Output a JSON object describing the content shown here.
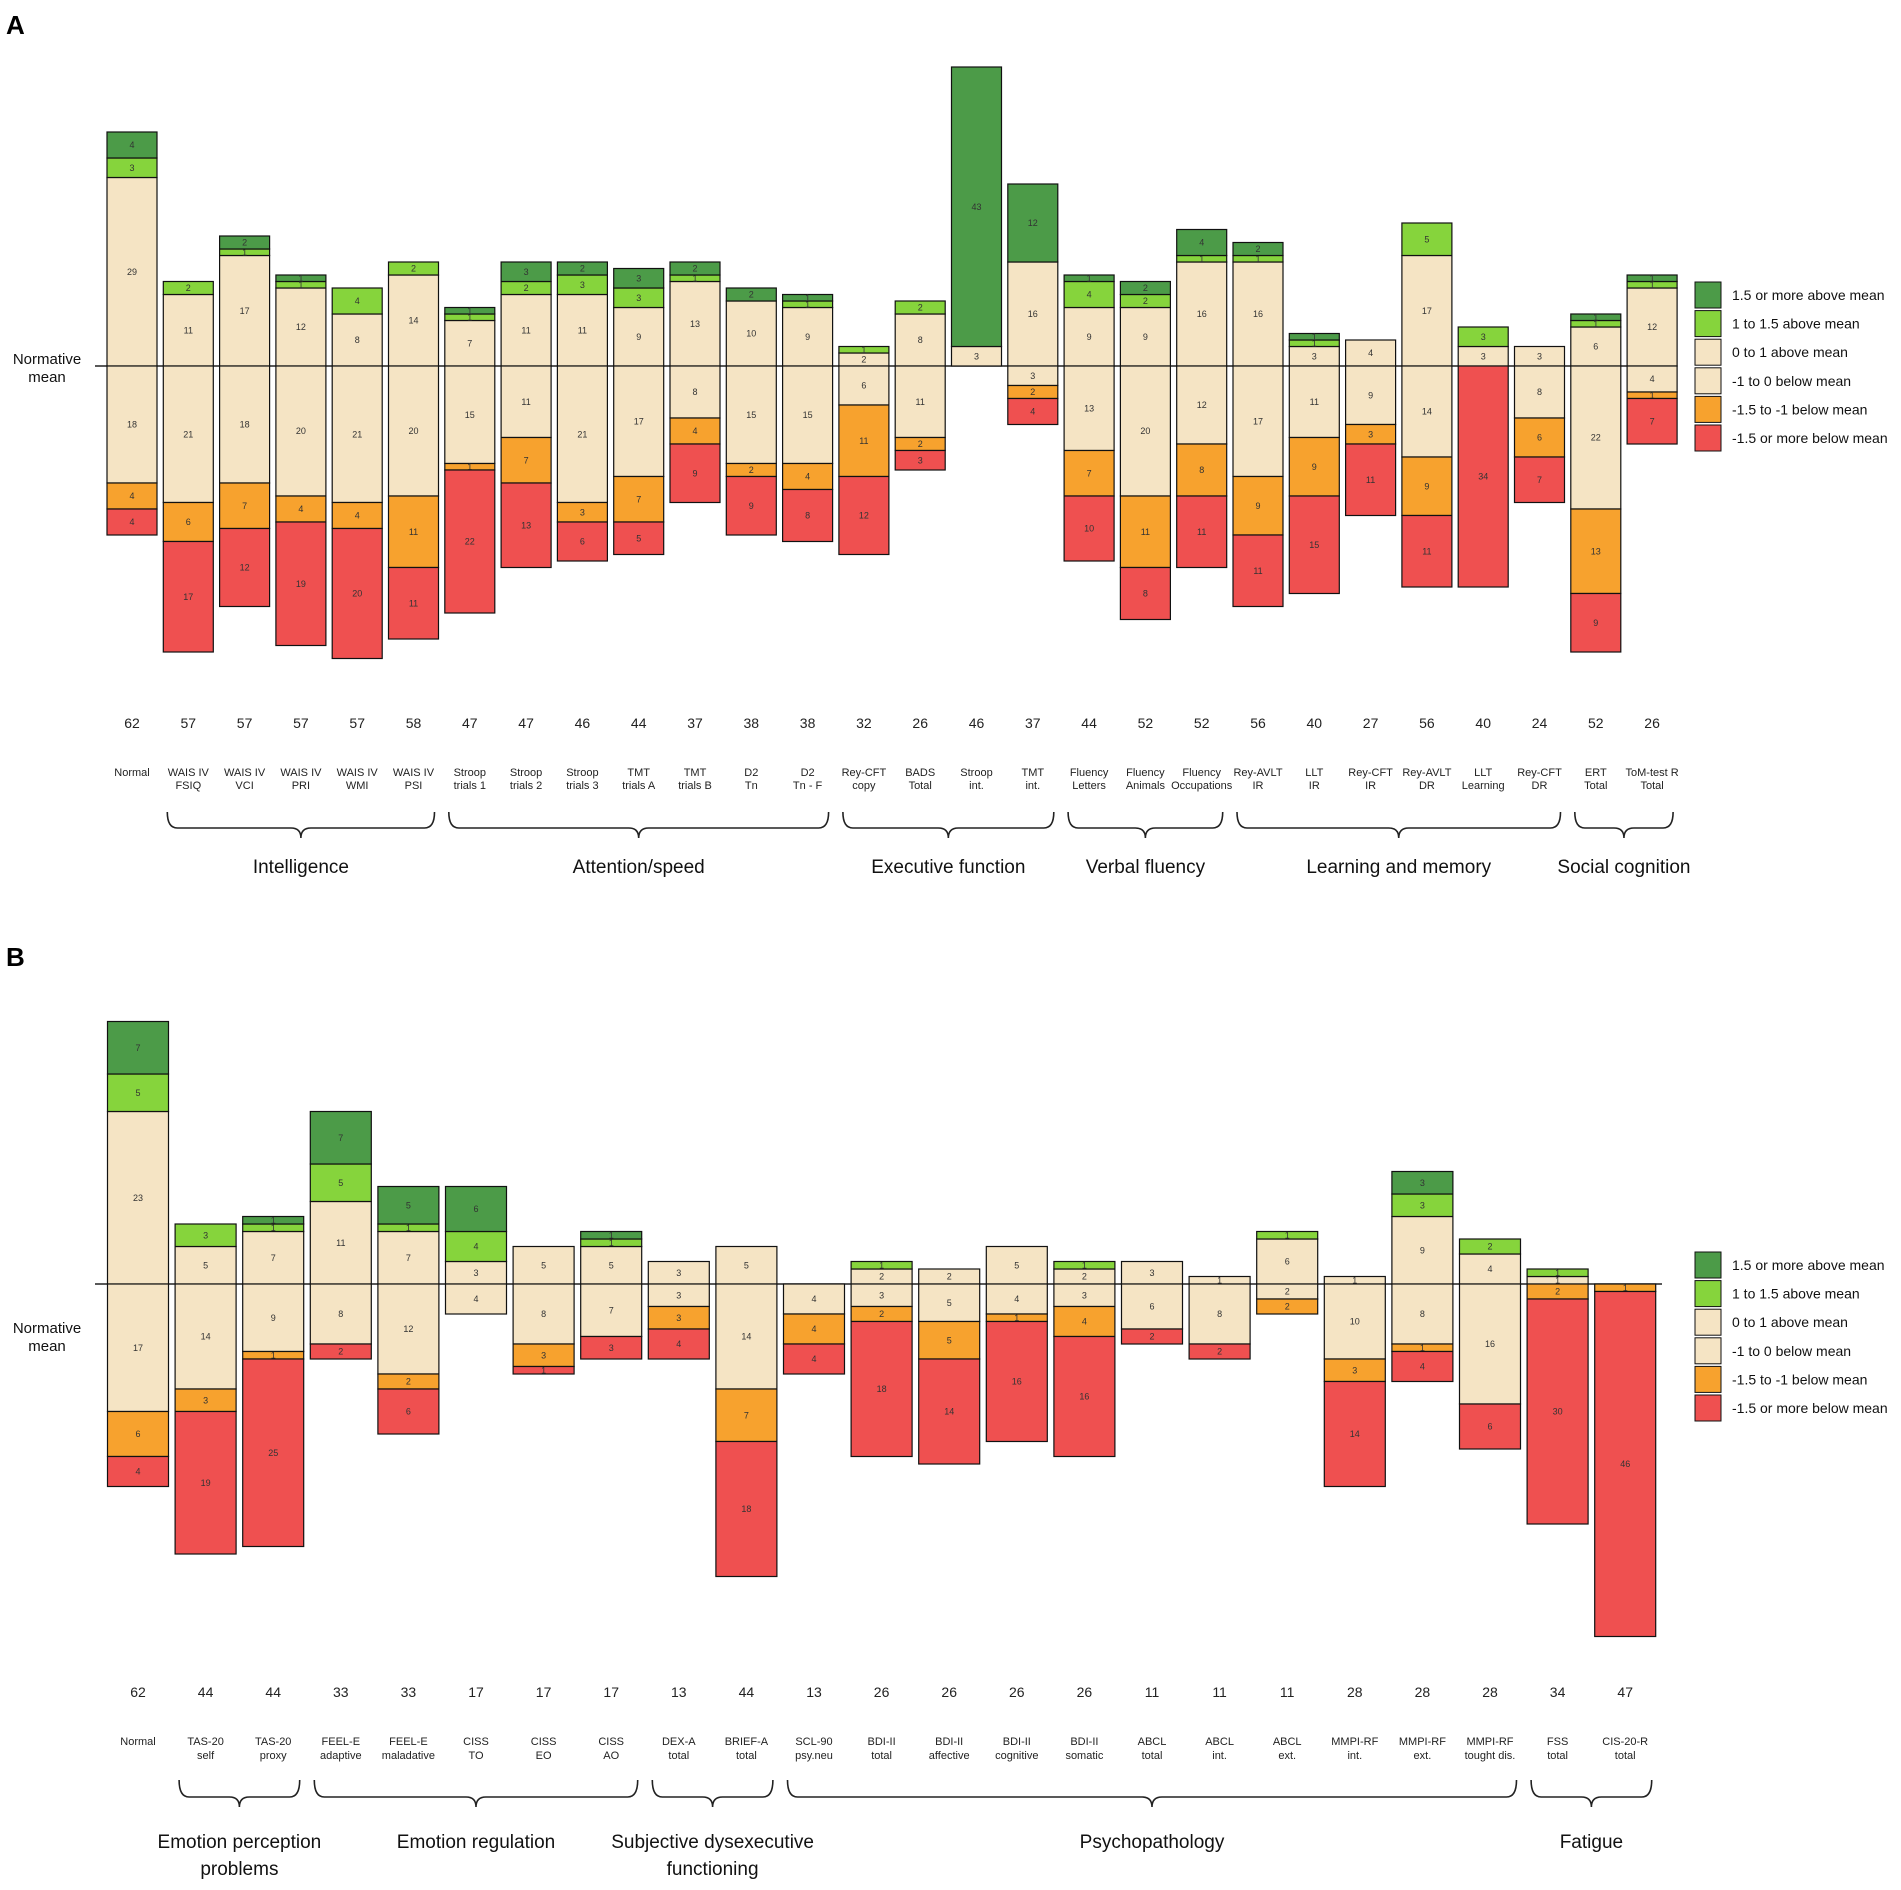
{
  "legend": [
    {
      "key": "g15",
      "label": "1.5 or more above mean",
      "color": "#4c9b48"
    },
    {
      "key": "g1",
      "label": "1 to 1.5 above mean",
      "color": "#86d43c"
    },
    {
      "key": "b0",
      "label": "0 to 1 above mean",
      "color": "#f5e4c4"
    },
    {
      "key": "bm",
      "label": "-1 to 0 below mean",
      "color": "#f5e4c4"
    },
    {
      "key": "o",
      "label": "-1.5 to -1 below mean",
      "color": "#f7a22e"
    },
    {
      "key": "r",
      "label": "-1.5 or more below mean",
      "color": "#ef5050"
    }
  ],
  "chart_data": [
    {
      "type": "bar",
      "panel": "A",
      "ylabel": "Normative mean",
      "categories": [
        {
          "l1": "Normal",
          "l2": "",
          "n": "62",
          "segs": [
            4,
            3,
            29,
            18,
            4,
            4
          ]
        },
        {
          "l1": "WAIS IV",
          "l2": "FSIQ",
          "n": "57",
          "segs": [
            0,
            2,
            11,
            21,
            6,
            17
          ]
        },
        {
          "l1": "WAIS IV",
          "l2": "VCI",
          "n": "57",
          "segs": [
            2,
            1,
            17,
            18,
            7,
            12
          ]
        },
        {
          "l1": "WAIS IV",
          "l2": "PRI",
          "n": "57",
          "segs": [
            1,
            1,
            12,
            20,
            4,
            19
          ]
        },
        {
          "l1": "WAIS IV",
          "l2": "WMI",
          "n": "57",
          "segs": [
            0,
            4,
            8,
            21,
            4,
            20
          ]
        },
        {
          "l1": "WAIS IV",
          "l2": "PSI",
          "n": "58",
          "segs": [
            0,
            2,
            14,
            20,
            11,
            11
          ]
        },
        {
          "l1": "Stroop",
          "l2": "trials 1",
          "n": "47",
          "segs": [
            1,
            1,
            7,
            15,
            1,
            22
          ]
        },
        {
          "l1": "Stroop",
          "l2": "trials 2",
          "n": "47",
          "segs": [
            3,
            2,
            11,
            11,
            7,
            13
          ]
        },
        {
          "l1": "Stroop",
          "l2": "trials 3",
          "n": "46",
          "segs": [
            2,
            3,
            11,
            21,
            3,
            6
          ]
        },
        {
          "l1": "TMT",
          "l2": "trials A",
          "n": "44",
          "segs": [
            3,
            3,
            9,
            17,
            7,
            5
          ]
        },
        {
          "l1": "TMT",
          "l2": "trials B",
          "n": "37",
          "segs": [
            2,
            1,
            13,
            8,
            4,
            9
          ]
        },
        {
          "l1": "D2",
          "l2": "Tn",
          "n": "38",
          "segs": [
            2,
            0,
            10,
            15,
            2,
            9
          ]
        },
        {
          "l1": "D2",
          "l2": "Tn - F",
          "n": "38",
          "segs": [
            1,
            1,
            9,
            15,
            4,
            8
          ]
        },
        {
          "l1": "Rey-CFT",
          "l2": "copy",
          "n": "32",
          "segs": [
            0,
            1,
            2,
            6,
            11,
            12
          ]
        },
        {
          "l1": "BADS",
          "l2": "Total",
          "n": "26",
          "segs": [
            0,
            2,
            8,
            11,
            2,
            3
          ]
        },
        {
          "l1": "Stroop",
          "l2": "int.",
          "n": "46",
          "segs": [
            43,
            0,
            3,
            0,
            0,
            0
          ]
        },
        {
          "l1": "TMT",
          "l2": "int.",
          "n": "37",
          "segs": [
            12,
            0,
            16,
            3,
            2,
            4
          ]
        },
        {
          "l1": "Fluency",
          "l2": "Letters",
          "n": "44",
          "segs": [
            1,
            4,
            9,
            13,
            7,
            10
          ]
        },
        {
          "l1": "Fluency",
          "l2": "Animals",
          "n": "52",
          "segs": [
            2,
            2,
            9,
            20,
            11,
            8
          ]
        },
        {
          "l1": "Fluency",
          "l2": "Occupations",
          "n": "52",
          "segs": [
            4,
            1,
            16,
            12,
            8,
            11
          ]
        },
        {
          "l1": "Rey-AVLT",
          "l2": "IR",
          "n": "56",
          "segs": [
            2,
            1,
            16,
            17,
            9,
            11
          ]
        },
        {
          "l1": "LLT",
          "l2": "IR",
          "n": "40",
          "segs": [
            1,
            1,
            3,
            11,
            9,
            15
          ]
        },
        {
          "l1": "Rey-CFT",
          "l2": "IR",
          "n": "27",
          "segs": [
            0,
            0,
            4,
            9,
            3,
            11
          ]
        },
        {
          "l1": "Rey-AVLT",
          "l2": "DR",
          "n": "56",
          "segs": [
            0,
            5,
            17,
            14,
            9,
            11
          ]
        },
        {
          "l1": "LLT",
          "l2": "Learning",
          "n": "40",
          "segs": [
            0,
            3,
            3,
            0,
            0,
            34
          ]
        },
        {
          "l1": "Rey-CFT",
          "l2": "DR",
          "n": "24",
          "segs": [
            0,
            0,
            3,
            8,
            6,
            7
          ]
        },
        {
          "l1": "ERT",
          "l2": "Total",
          "n": "52",
          "segs": [
            1,
            1,
            6,
            22,
            13,
            9
          ]
        },
        {
          "l1": "ToM-test R",
          "l2": "Total",
          "n": "26",
          "segs": [
            1,
            1,
            12,
            4,
            1,
            7
          ]
        }
      ],
      "groups": [
        {
          "label": "Intelligence",
          "from": 1,
          "to": 5
        },
        {
          "label": "Attention/speed",
          "from": 6,
          "to": 12
        },
        {
          "label": "Executive function",
          "from": 13,
          "to": 16
        },
        {
          "label": "Verbal fluency",
          "from": 17,
          "to": 19
        },
        {
          "label": "Learning and memory",
          "from": 20,
          "to": 25
        },
        {
          "label": "Social cognition",
          "from": 26,
          "to": 27
        }
      ]
    },
    {
      "type": "bar",
      "panel": "B",
      "ylabel": "Normative mean",
      "categories": [
        {
          "l1": "Normal",
          "l2": "",
          "n": "62",
          "segs": [
            7,
            5,
            23,
            17,
            6,
            4
          ]
        },
        {
          "l1": "TAS-20",
          "l2": "self",
          "n": "44",
          "segs": [
            0,
            3,
            5,
            14,
            3,
            19
          ]
        },
        {
          "l1": "TAS-20",
          "l2": "proxy",
          "n": "44",
          "segs": [
            1,
            1,
            7,
            9,
            1,
            25
          ]
        },
        {
          "l1": "FEEL-E",
          "l2": "adaptive",
          "n": "33",
          "segs": [
            7,
            5,
            11,
            8,
            0,
            2
          ]
        },
        {
          "l1": "FEEL-E",
          "l2": "maladative",
          "n": "33",
          "segs": [
            5,
            1,
            7,
            12,
            2,
            6
          ]
        },
        {
          "l1": "CISS",
          "l2": "TO",
          "n": "17",
          "segs": [
            6,
            4,
            3,
            4,
            0,
            0
          ]
        },
        {
          "l1": "CISS",
          "l2": "EO",
          "n": "17",
          "segs": [
            0,
            0,
            5,
            8,
            3,
            1
          ]
        },
        {
          "l1": "CISS",
          "l2": "AO",
          "n": "17",
          "segs": [
            1,
            1,
            5,
            7,
            0,
            3
          ]
        },
        {
          "l1": "DEX-A",
          "l2": "total",
          "n": "13",
          "segs": [
            0,
            0,
            3,
            3,
            3,
            4
          ]
        },
        {
          "l1": "BRIEF-A",
          "l2": "total",
          "n": "44",
          "segs": [
            0,
            0,
            5,
            14,
            7,
            18
          ]
        },
        {
          "l1": "SCL-90",
          "l2": "psy.neu",
          "n": "13",
          "segs": [
            0,
            0,
            0,
            4,
            4,
            4
          ]
        },
        {
          "l1": "BDI-II",
          "l2": "total",
          "n": "26",
          "segs": [
            0,
            1,
            2,
            3,
            2,
            18
          ]
        },
        {
          "l1": "BDI-II",
          "l2": "affective",
          "n": "26",
          "segs": [
            0,
            0,
            2,
            5,
            5,
            14
          ]
        },
        {
          "l1": "BDI-II",
          "l2": "cognitive",
          "n": "26",
          "segs": [
            0,
            0,
            5,
            4,
            1,
            16
          ]
        },
        {
          "l1": "BDI-II",
          "l2": "somatic",
          "n": "26",
          "segs": [
            0,
            1,
            2,
            3,
            4,
            16
          ]
        },
        {
          "l1": "ABCL",
          "l2": "total",
          "n": "11",
          "segs": [
            0,
            0,
            3,
            6,
            0,
            2
          ]
        },
        {
          "l1": "ABCL",
          "l2": "int.",
          "n": "11",
          "segs": [
            0,
            0,
            1,
            8,
            0,
            2
          ]
        },
        {
          "l1": "ABCL",
          "l2": "ext.",
          "n": "11",
          "segs": [
            0,
            1,
            6,
            2,
            2,
            0
          ]
        },
        {
          "l1": "MMPI-RF",
          "l2": "int.",
          "n": "28",
          "segs": [
            0,
            0,
            1,
            10,
            3,
            14
          ]
        },
        {
          "l1": "MMPI-RF",
          "l2": "ext.",
          "n": "28",
          "segs": [
            3,
            3,
            9,
            8,
            1,
            4
          ]
        },
        {
          "l1": "MMPI-RF",
          "l2": "tought dis.",
          "n": "28",
          "segs": [
            0,
            2,
            4,
            16,
            0,
            6
          ]
        },
        {
          "l1": "FSS",
          "l2": "total",
          "n": "34",
          "segs": [
            0,
            1,
            1,
            0,
            2,
            30
          ]
        },
        {
          "l1": "CIS-20-R",
          "l2": "total",
          "n": "47",
          "segs": [
            0,
            0,
            0,
            0,
            1,
            46
          ]
        }
      ],
      "groups": [
        {
          "label": "Emotion perception",
          "label2": "problems",
          "from": 1,
          "to": 2
        },
        {
          "label": "Emotion regulation",
          "from": 3,
          "to": 7
        },
        {
          "label": "Subjective dysexecutive",
          "label2": "functioning",
          "from": 8,
          "to": 9
        },
        {
          "label": "Psychopathology",
          "from": 10,
          "to": 20
        },
        {
          "label": "Fatigue",
          "from": 21,
          "to": 22
        }
      ]
    }
  ]
}
